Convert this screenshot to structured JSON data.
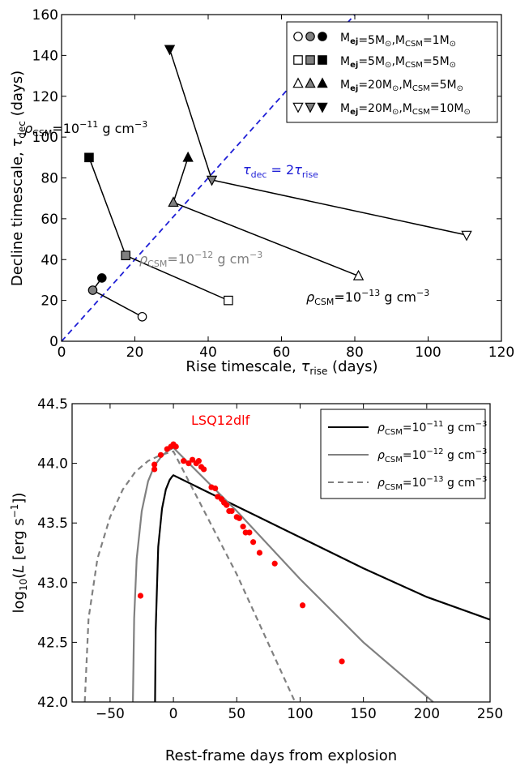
{
  "chart_data": [
    {
      "type": "scatter",
      "xlabel": "Rise timescale, τ_rise (days)",
      "ylabel": "Decline timescale, τ_dec (days)",
      "xlim": [
        0,
        120
      ],
      "ylim": [
        0,
        160
      ],
      "xticks": [
        0,
        20,
        40,
        60,
        80,
        100,
        120
      ],
      "yticks": [
        0,
        20,
        40,
        60,
        80,
        100,
        120,
        140,
        160
      ],
      "grid": false,
      "legend_position": "top-right",
      "markers_by_density": [
        "open",
        "grey",
        "black"
      ],
      "series": [
        {
          "name": "M_ej=5M⊙,M_CSM=1M⊙",
          "marker": "circle",
          "points": [
            {
              "x": 22,
              "y": 12
            },
            {
              "x": 8.5,
              "y": 25
            },
            {
              "x": 11,
              "y": 31
            }
          ]
        },
        {
          "name": "M_ej=5M⊙,M_CSM=5M⊙",
          "marker": "square",
          "points": [
            {
              "x": 45.5,
              "y": 20
            },
            {
              "x": 17.5,
              "y": 42
            },
            {
              "x": 7.5,
              "y": 90
            }
          ]
        },
        {
          "name": "M_ej=20M⊙,M_CSM=5M⊙",
          "marker": "triangle-up",
          "points": [
            {
              "x": 81,
              "y": 32
            },
            {
              "x": 30.5,
              "y": 68
            },
            {
              "x": 34.5,
              "y": 90
            }
          ]
        },
        {
          "name": "M_ej=20M⊙,M_CSM=10M⊙",
          "marker": "triangle-down",
          "points": [
            {
              "x": 110.5,
              "y": 52
            },
            {
              "x": 41,
              "y": 79
            },
            {
              "x": 29.5,
              "y": 143
            }
          ]
        }
      ],
      "reference_line": {
        "label": "τ_dec = 2τ_rise",
        "slope": 2,
        "color": "#1f1fd6"
      },
      "annotations": [
        {
          "text": "ρ_CSM=10^-11 g cm^-3",
          "color": "#000000"
        },
        {
          "text": "ρ_CSM=10^-12 g cm^-3",
          "color": "#808080"
        },
        {
          "text": "ρ_CSM=10^-13 g cm^-3",
          "color": "#000000"
        }
      ]
    },
    {
      "type": "line",
      "xlabel": "Rest-frame days from explosion",
      "ylabel": "log10(L [erg s^-1])",
      "xlim": [
        -80,
        250
      ],
      "ylim": [
        42.0,
        44.5
      ],
      "xticks": [
        -50,
        0,
        50,
        100,
        150,
        200,
        250
      ],
      "yticks": [
        42.0,
        42.5,
        43.0,
        43.5,
        44.0,
        44.5
      ],
      "ytick_labels": [
        "42.0",
        "42.5",
        "43.0",
        "43.5",
        "44.0",
        "44.5"
      ],
      "grid": false,
      "legend_position": "top-right",
      "series": [
        {
          "name": "ρ_CSM=10^-11 g cm^-3",
          "color": "#000000",
          "style": "solid",
          "x": [
            -14.5,
            -14,
            -12,
            -9,
            -6,
            -3,
            -1,
            0,
            50,
            100,
            150,
            200,
            250
          ],
          "y": [
            42.0,
            42.6,
            43.3,
            43.62,
            43.78,
            43.86,
            43.89,
            43.9,
            43.64,
            43.38,
            43.12,
            42.88,
            42.69
          ]
        },
        {
          "name": "ρ_CSM=10^-12 g cm^-3",
          "color": "#808080",
          "style": "solid",
          "x": [
            -32,
            -31,
            -29,
            -25,
            -20,
            -15,
            -10,
            -5,
            0,
            50,
            100,
            150,
            205
          ],
          "y": [
            42.0,
            42.7,
            43.2,
            43.6,
            43.85,
            43.98,
            44.05,
            44.1,
            44.13,
            43.6,
            43.03,
            42.5,
            42.0
          ]
        },
        {
          "name": "ρ_CSM=10^-13 g cm^-3",
          "color": "#808080",
          "style": "dashed",
          "x": [
            -70,
            -67,
            -60,
            -50,
            -40,
            -30,
            -20,
            -10,
            0,
            50,
            96
          ],
          "y": [
            42.0,
            42.7,
            43.2,
            43.55,
            43.78,
            43.93,
            44.02,
            44.07,
            44.1,
            43.07,
            42.0
          ]
        }
      ],
      "observed": {
        "name": "LSQ12dlf",
        "color": "#ff0000",
        "x": [
          -26,
          -15,
          -15,
          -10,
          -5,
          -2,
          0,
          2,
          8,
          12,
          15,
          18,
          20,
          22,
          24,
          30,
          33,
          35,
          38,
          40,
          42,
          44,
          46,
          50,
          52,
          55,
          57,
          60,
          63,
          68,
          80,
          102,
          133
        ],
        "y": [
          42.89,
          43.99,
          43.95,
          44.07,
          44.12,
          44.14,
          44.16,
          44.14,
          44.02,
          44.0,
          44.03,
          44.0,
          44.02,
          43.97,
          43.95,
          43.8,
          43.79,
          43.72,
          43.7,
          43.67,
          43.65,
          43.6,
          43.6,
          43.55,
          43.54,
          43.47,
          43.42,
          43.42,
          43.34,
          43.25,
          43.16,
          42.81,
          42.34
        ]
      }
    }
  ],
  "labels": {
    "top": {
      "xlabel_main": "Rise timescale, ",
      "xlabel_sym": "τ",
      "xlabel_sub": "rise",
      "xlabel_tail": " (days)",
      "ylabel_main": "Decline timescale, ",
      "ylabel_sym": "τ",
      "ylabel_sub": "dec",
      "ylabel_tail": " (days)",
      "ref_sym": "τ",
      "ref_sub1": "dec",
      "ref_mid": " = 2",
      "ref_sym2": "τ",
      "ref_sub2": "rise",
      "legend": [
        {
          "ej": "5M",
          "csm": "1M"
        },
        {
          "ej": "5M",
          "csm": "5M"
        },
        {
          "ej": "20M",
          "csm": "5M"
        },
        {
          "ej": "20M",
          "csm": "10M"
        }
      ],
      "rho_sym": "ρ",
      "csm_sub": "CSM",
      "eq_ten": "=10",
      "ann_exps": [
        "−11",
        "−12",
        "−13"
      ],
      "unit": " g cm",
      "unit_exp": "−3",
      "m_ej": "M",
      "ej_sub": "ej",
      "m_csm": "M",
      "sun": "⊙"
    },
    "bottom": {
      "xlabel": "Rest-frame days from explosion",
      "ylabel_pre": "log",
      "ylabel_sub": "10",
      "ylabel_mid": "(",
      "ylabel_L": "L",
      "ylabel_unit": " [erg s",
      "ylabel_exp": "−1",
      "ylabel_close": "])",
      "legend_exps": [
        "−11",
        "−12",
        "−13"
      ],
      "object": "LSQ12dlf"
    }
  }
}
